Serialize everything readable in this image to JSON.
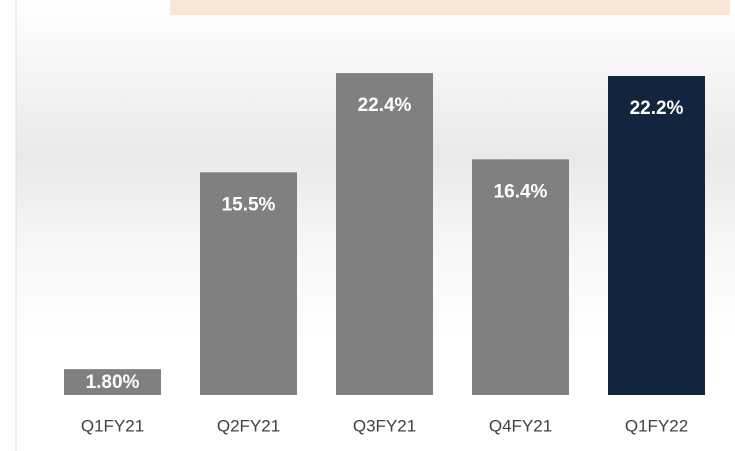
{
  "chart_data": {
    "type": "bar",
    "categories": [
      "Q1FY21",
      "Q2FY21",
      "Q3FY21",
      "Q4FY21",
      "Q1FY22"
    ],
    "values": [
      1.8,
      15.5,
      22.4,
      16.4,
      22.2
    ],
    "value_labels": [
      "1.80%",
      "15.5%",
      "22.4%",
      "16.4%",
      "22.2%"
    ],
    "colors": [
      "#808080",
      "#808080",
      "#808080",
      "#808080",
      "#13243f"
    ],
    "grid": false
  }
}
